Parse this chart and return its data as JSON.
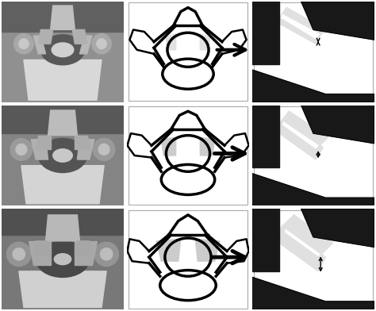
{
  "figure_width": 4.74,
  "figure_height": 3.92,
  "dpi": 100,
  "background_color": "#ffffff",
  "line_color": "#000000",
  "gray_fill": "#cccccc",
  "light_gray": "#e0e0e0",
  "panel_bg": "#ffffff",
  "bone_color": "#1a1a1a",
  "mri_colors": {
    "bg": "#909090",
    "vertebra": "#d0d0d0",
    "canal": "#707070",
    "facet": "#b0b0b0",
    "spinous": "#c8c8c8",
    "bright": "#e8e8e8"
  }
}
